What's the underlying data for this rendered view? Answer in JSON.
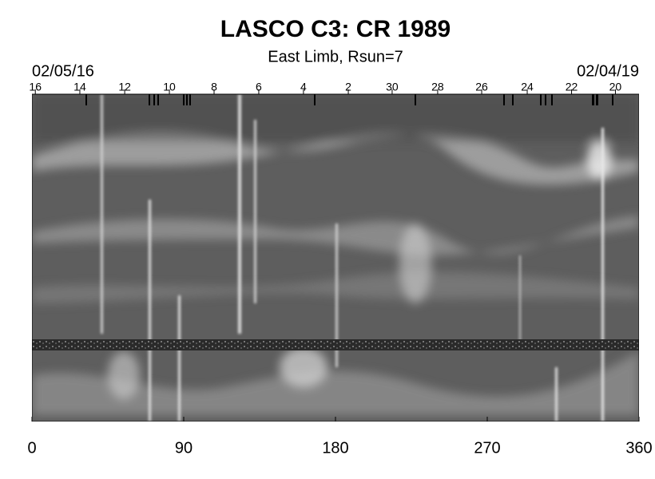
{
  "chart_data": {
    "type": "image",
    "title": "LASCO C3: CR 1989",
    "subtitle": "East Limb, Rsun=7",
    "start_date": "02/05/16",
    "end_date": "02/04/19",
    "xlim": [
      0,
      360
    ],
    "xticks": [
      0,
      90,
      180,
      270,
      360
    ],
    "x2ticks": [
      {
        "value": 2,
        "label": "16"
      },
      {
        "value": 28.4,
        "label": "14"
      },
      {
        "value": 55,
        "label": "12"
      },
      {
        "value": 81.5,
        "label": "10"
      },
      {
        "value": 108,
        "label": "8"
      },
      {
        "value": 134.5,
        "label": "6"
      },
      {
        "value": 161,
        "label": "4"
      },
      {
        "value": 187.6,
        "label": "2"
      },
      {
        "value": 213.6,
        "label": "30"
      },
      {
        "value": 240.6,
        "label": "28"
      },
      {
        "value": 266.7,
        "label": "26"
      },
      {
        "value": 293.7,
        "label": "24"
      },
      {
        "value": 320,
        "label": "22"
      },
      {
        "value": 346,
        "label": "20"
      }
    ]
  }
}
